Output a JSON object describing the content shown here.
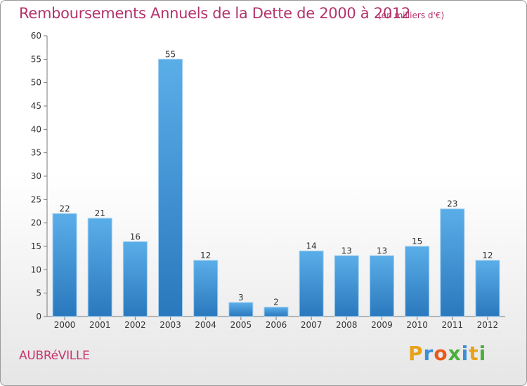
{
  "page": {
    "title": "Remboursements Annuels de la Dette de 2000 à 2012",
    "unit": "(en milliers d'€)",
    "town": "AUBRéVILLE",
    "logo": {
      "text": "Proxiti",
      "letters": [
        {
          "ch": "P",
          "color": "#e8a21a"
        },
        {
          "ch": "r",
          "color": "#3a8fd6"
        },
        {
          "ch": "o",
          "color": "#e85a1a"
        },
        {
          "ch": "x",
          "color": "#4caf3c"
        },
        {
          "ch": "i",
          "color": "#3a8fd6"
        },
        {
          "ch": "t",
          "color": "#e8a21a"
        },
        {
          "ch": "i",
          "color": "#4caf3c"
        }
      ]
    }
  },
  "chart_data": {
    "type": "bar",
    "title": "Remboursements Annuels de la Dette de 2000 à 2012",
    "subtitle": "(en milliers d'€)",
    "categories": [
      "2000",
      "2001",
      "2002",
      "2003",
      "2004",
      "2005",
      "2006",
      "2007",
      "2008",
      "2009",
      "2010",
      "2011",
      "2012"
    ],
    "values": [
      22,
      21,
      16,
      55,
      12,
      3,
      2,
      14,
      13,
      13,
      15,
      23,
      12
    ],
    "ylim": [
      0,
      60
    ],
    "yticks": [
      0,
      5,
      10,
      15,
      20,
      25,
      30,
      35,
      40,
      45,
      50,
      55,
      60
    ],
    "grid": false,
    "data_labels": true,
    "colors": {
      "bar_top": "#5aaee8",
      "bar_bottom": "#2a78bd",
      "axis": "#7a7a7a",
      "text": "#333333"
    }
  }
}
